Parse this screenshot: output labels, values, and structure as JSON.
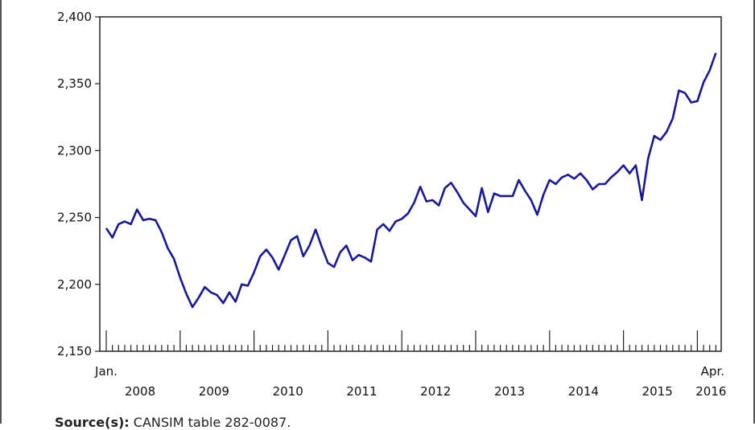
{
  "chart_data": {
    "type": "line",
    "title": "",
    "xlabel": "",
    "ylabel": "",
    "ylim": [
      2150,
      2400
    ],
    "y_ticks": [
      2150,
      2200,
      2250,
      2300,
      2350,
      2400
    ],
    "y_tick_labels": [
      "2,150",
      "2,200",
      "2,250",
      "2,300",
      "2,350",
      "2,400"
    ],
    "x_start_label": "Jan.",
    "x_end_label": "Apr.",
    "years": [
      "2008",
      "2009",
      "2010",
      "2011",
      "2012",
      "2013",
      "2014",
      "2015",
      "2016"
    ],
    "grid": false,
    "line_color": "#1a1a8c",
    "series": [
      {
        "values": [
          2242,
          2235,
          2245,
          2247,
          2245,
          2256,
          2248,
          2249,
          2248,
          2239,
          2227,
          2219,
          2205,
          2193,
          2183,
          2190,
          2198,
          2194,
          2192,
          2186,
          2194,
          2187,
          2200,
          2199,
          2209,
          2221,
          2226,
          2220,
          2211,
          2222,
          2233,
          2236,
          2221,
          2229,
          2241,
          2228,
          2216,
          2213,
          2224,
          2229,
          2218,
          2222,
          2220,
          2217,
          2241,
          2245,
          2240,
          2247,
          2249,
          2253,
          2261,
          2273,
          2262,
          2263,
          2259,
          2272,
          2276,
          2269,
          2261,
          2256,
          2251,
          2272,
          2254,
          2268,
          2266,
          2266,
          2266,
          2278,
          2270,
          2263,
          2252,
          2267,
          2278,
          2275,
          2280,
          2282,
          2279,
          2283,
          2278,
          2271,
          2275,
          2275,
          2280,
          2284,
          2289,
          2283,
          2289,
          2263,
          2294,
          2311,
          2308,
          2314,
          2324,
          2345,
          2343,
          2336,
          2337,
          2351,
          2360,
          2373
        ]
      }
    ]
  },
  "footer": {
    "source_label": "Source(s):",
    "source_text": "CANSIM table 282-0087."
  }
}
